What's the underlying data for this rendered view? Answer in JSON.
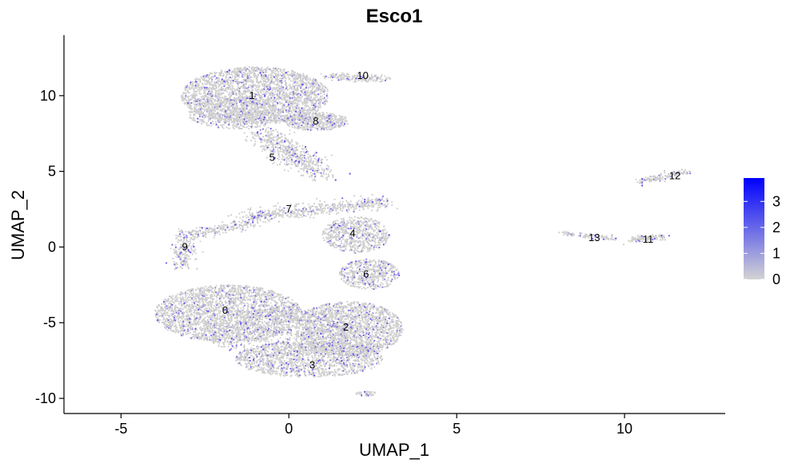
{
  "chart_data": {
    "type": "scatter",
    "title": "Esco1",
    "xlabel": "UMAP_1",
    "ylabel": "UMAP_2",
    "xlim": [
      -6.7,
      13.0
    ],
    "ylim": [
      -11.0,
      14.0
    ],
    "x_ticks": [
      -5,
      0,
      5,
      10
    ],
    "x_tick_labels": [
      "-5",
      "0",
      "5",
      "10"
    ],
    "y_ticks": [
      -10,
      -5,
      0,
      5,
      10
    ],
    "y_tick_labels": [
      "-10",
      "-5",
      "0",
      "5",
      "10"
    ],
    "grid": false,
    "legend": {
      "position": "right",
      "type": "colorbar",
      "range": [
        0,
        3.9
      ],
      "ticks": [
        0,
        1,
        2,
        3
      ],
      "tick_labels": [
        "0",
        "1",
        "2",
        "3"
      ],
      "low_color": "#d3d3d3",
      "high_color": "#0000ff"
    },
    "cluster_labels": [
      {
        "label": "0",
        "x": -1.9,
        "y": -4.2
      },
      {
        "label": "1",
        "x": -1.1,
        "y": 10.0
      },
      {
        "label": "2",
        "x": 1.7,
        "y": -5.3
      },
      {
        "label": "3",
        "x": 0.7,
        "y": -7.8
      },
      {
        "label": "4",
        "x": 1.9,
        "y": 0.9
      },
      {
        "label": "5",
        "x": -0.5,
        "y": 5.9
      },
      {
        "label": "6",
        "x": 2.3,
        "y": -1.8
      },
      {
        "label": "7",
        "x": 0.0,
        "y": 2.5
      },
      {
        "label": "8",
        "x": 0.8,
        "y": 8.3
      },
      {
        "label": "9",
        "x": -3.1,
        "y": 0.0
      },
      {
        "label": "10",
        "x": 2.2,
        "y": 11.3
      },
      {
        "label": "11",
        "x": 10.7,
        "y": 0.5
      },
      {
        "label": "12",
        "x": 11.5,
        "y": 4.7
      },
      {
        "label": "13",
        "x": 9.1,
        "y": 0.6
      }
    ]
  }
}
